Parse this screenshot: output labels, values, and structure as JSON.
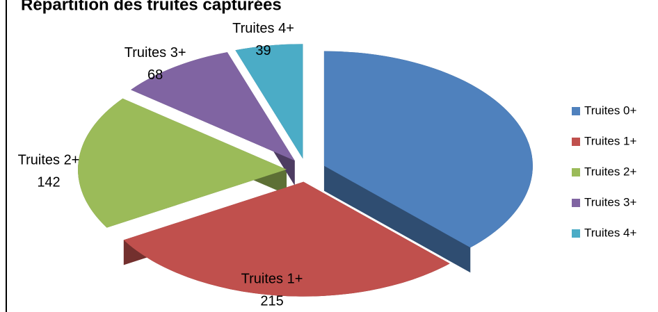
{
  "chart_data": {
    "type": "pie",
    "title": "Répartition des truites capturées",
    "categories": [
      "Truites 0+",
      "Truites 1+",
      "Truites 2+",
      "Truites 3+",
      "Truites 4+"
    ],
    "values": [
      280,
      215,
      142,
      68,
      39
    ],
    "colors": [
      "#4f81bd",
      "#c0504d",
      "#9bbb59",
      "#8064a2",
      "#4bacc6"
    ],
    "legend": "right"
  }
}
